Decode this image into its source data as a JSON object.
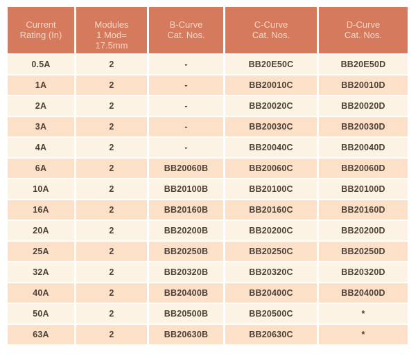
{
  "colors": {
    "header_bg": "#d57a5c",
    "header_text": "#f6d8c9",
    "row_light": "#fdf3e5",
    "row_dark": "#fce0c8",
    "body_text": "#4e4036"
  },
  "table": {
    "columns": [
      {
        "label": "Current\nRating (In)"
      },
      {
        "label": "Modules\n1 Mod=\n17.5mm"
      },
      {
        "label": "B-Curve\nCat. Nos."
      },
      {
        "label": "C-Curve\nCat. Nos."
      },
      {
        "label": "D-Curve\nCat. Nos."
      }
    ],
    "rows": [
      [
        "0.5A",
        "2",
        "-",
        "BB20E50C",
        "BB20E50D"
      ],
      [
        "1A",
        "2",
        "-",
        "BB20010C",
        "BB20010D"
      ],
      [
        "2A",
        "2",
        "-",
        "BB20020C",
        "BB20020D"
      ],
      [
        "3A",
        "2",
        "-",
        "BB20030C",
        "BB20030D"
      ],
      [
        "4A",
        "2",
        "-",
        "BB20040C",
        "BB20040D"
      ],
      [
        "6A",
        "2",
        "BB20060B",
        "BB20060C",
        "BB20060D"
      ],
      [
        "10A",
        "2",
        "BB20100B",
        "BB20100C",
        "BB20100D"
      ],
      [
        "16A",
        "2",
        "BB20160B",
        "BB20160C",
        "BB20160D"
      ],
      [
        "20A",
        "2",
        "BB20200B",
        "BB20200C",
        "BB20200D"
      ],
      [
        "25A",
        "2",
        "BB20250B",
        "BB20250C",
        "BB20250D"
      ],
      [
        "32A",
        "2",
        "BB20320B",
        "BB20320C",
        "BB20320D"
      ],
      [
        "40A",
        "2",
        "BB20400B",
        "BB20400C",
        "BB20400D"
      ],
      [
        "50A",
        "2",
        "BB20500B",
        "BB20500C",
        "*"
      ],
      [
        "63A",
        "2",
        "BB20630B",
        "BB20630C",
        "*"
      ]
    ]
  }
}
